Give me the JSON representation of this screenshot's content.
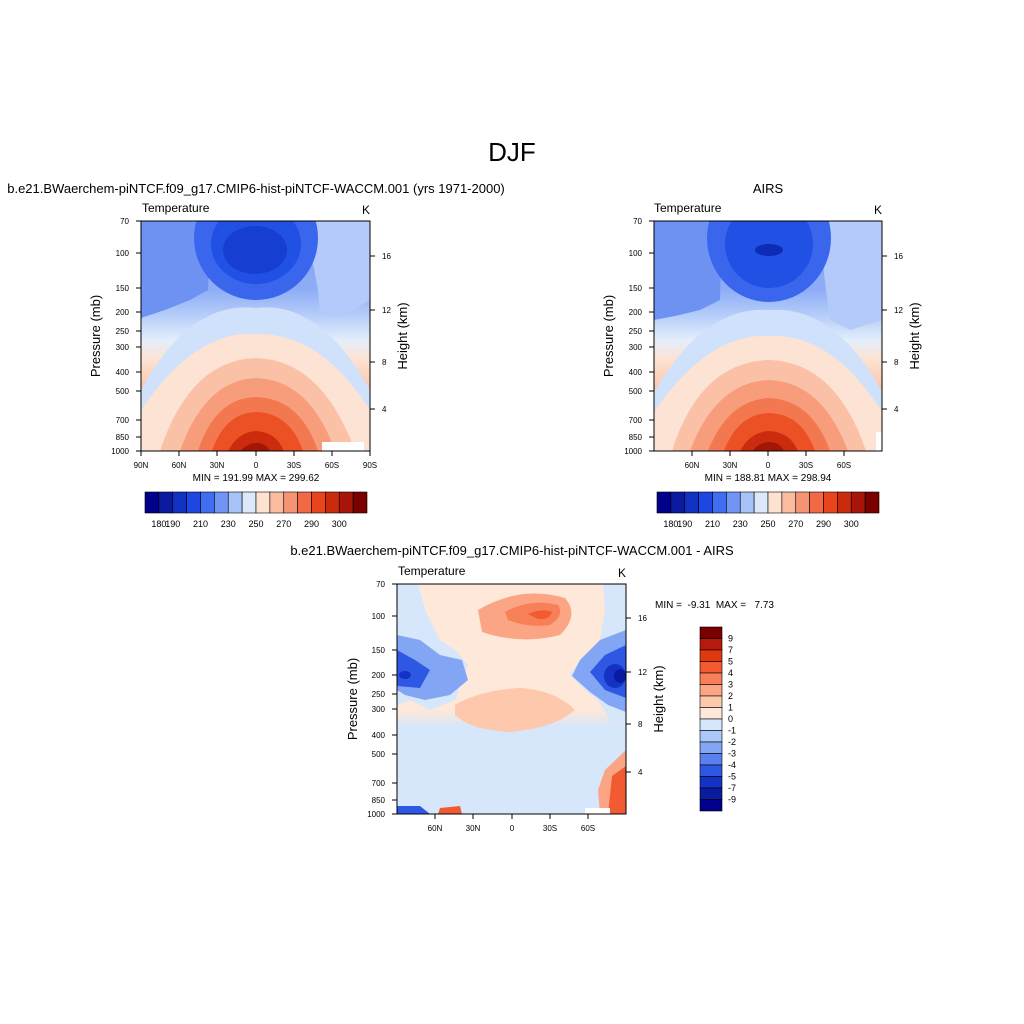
{
  "figure": {
    "title": "DJF"
  },
  "chart_data": [
    {
      "type": "contour",
      "title": "b.e21.BWaerchem-piNTCF.f09_g17.CMIP6-hist-piNTCF-WACCM.001 (yrs 1971-2000)",
      "left_label": "Temperature",
      "right_label": "K",
      "ylabel": "Pressure (mb)",
      "ylabel_right": "Height (km)",
      "x_ticks": [
        "90N",
        "60N",
        "30N",
        "0",
        "30S",
        "60S",
        "90S"
      ],
      "y_ticks": [
        "70",
        "100",
        "150",
        "200",
        "250",
        "300",
        "400",
        "500",
        "700",
        "850",
        "1000"
      ],
      "height_ticks": [
        "16",
        "12",
        "8",
        "4"
      ],
      "ylim": [
        1000,
        70
      ],
      "stats": "MIN = 191.99  MAX = 299.62",
      "min": 191.99,
      "max": 299.62,
      "colorbar": {
        "labels": [
          "180",
          "190",
          "210",
          "230",
          "250",
          "270",
          "290",
          "300"
        ],
        "colors": [
          "#00008b",
          "#0a1ba0",
          "#1131c2",
          "#1e46e0",
          "#3f6ff0",
          "#7095f5",
          "#a6c2f9",
          "#dde9fb",
          "#fde2d2",
          "#fbbca0",
          "#f79473",
          "#f26a45",
          "#e9441c",
          "#cb2b0d",
          "#a71608",
          "#7a0000"
        ]
      }
    },
    {
      "type": "contour",
      "title": "AIRS",
      "left_label": "Temperature",
      "right_label": "K",
      "ylabel": "Pressure (mb)",
      "ylabel_right": "Height (km)",
      "x_ticks": [
        "60N",
        "30N",
        "0",
        "30S",
        "60S"
      ],
      "y_ticks": [
        "70",
        "100",
        "150",
        "200",
        "250",
        "300",
        "400",
        "500",
        "700",
        "850",
        "1000"
      ],
      "height_ticks": [
        "16",
        "12",
        "8",
        "4"
      ],
      "ylim": [
        1000,
        70
      ],
      "stats": "MIN = 188.81  MAX = 298.94",
      "min": 188.81,
      "max": 298.94,
      "colorbar": {
        "labels": [
          "180",
          "190",
          "210",
          "230",
          "250",
          "270",
          "290",
          "300"
        ],
        "colors": [
          "#00008b",
          "#0a1ba0",
          "#1131c2",
          "#1e46e0",
          "#3f6ff0",
          "#7095f5",
          "#a6c2f9",
          "#dde9fb",
          "#fde2d2",
          "#fbbca0",
          "#f79473",
          "#f26a45",
          "#e9441c",
          "#cb2b0d",
          "#a71608",
          "#7a0000"
        ]
      }
    },
    {
      "type": "contour",
      "title": "b.e21.BWaerchem-piNTCF.f09_g17.CMIP6-hist-piNTCF-WACCM.001 - AIRS",
      "left_label": "Temperature",
      "right_label": "K",
      "ylabel": "Pressure (mb)",
      "ylabel_right": "Height (km)",
      "x_ticks": [
        "60N",
        "30N",
        "0",
        "30S",
        "60S"
      ],
      "y_ticks": [
        "70",
        "100",
        "150",
        "200",
        "250",
        "300",
        "400",
        "500",
        "700",
        "850",
        "1000"
      ],
      "height_ticks": [
        "16",
        "12",
        "8",
        "4"
      ],
      "ylim": [
        1000,
        70
      ],
      "stats": "MIN =  -9.31  MAX =   7.73",
      "min": -9.31,
      "max": 7.73,
      "colorbar": {
        "labels": [
          "9",
          "7",
          "5",
          "4",
          "3",
          "2",
          "1",
          "0",
          "-1",
          "-2",
          "-3",
          "-4",
          "-5",
          "-7",
          "-9"
        ],
        "colors": [
          "#7a0000",
          "#b51a0a",
          "#e0390f",
          "#f25a32",
          "#f78058",
          "#fba585",
          "#fdc8ac",
          "#fde8da",
          "#d6e6fb",
          "#aac8f9",
          "#82a6f4",
          "#5a80ee",
          "#2e58e4",
          "#1433c4",
          "#0a1ba0",
          "#00008b"
        ]
      }
    }
  ]
}
